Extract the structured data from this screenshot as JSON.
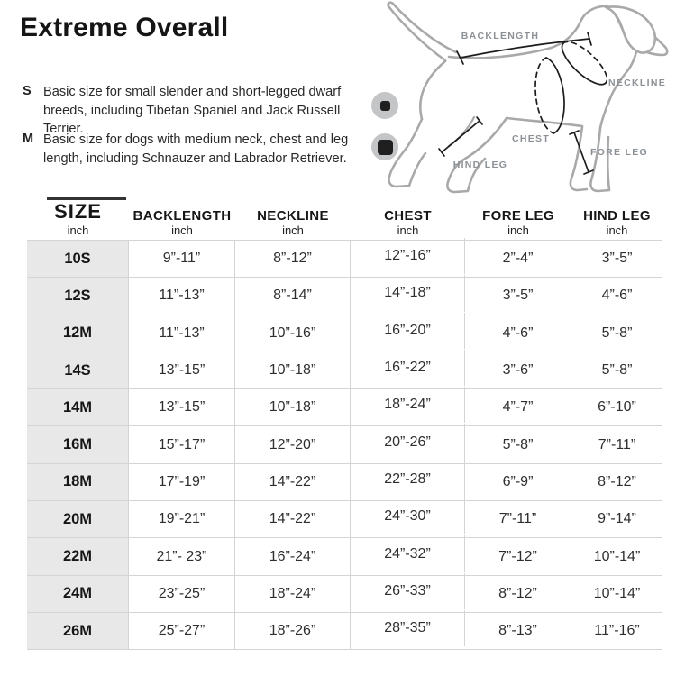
{
  "header": {
    "title": "Extreme Overall"
  },
  "notes": [
    {
      "label": "S",
      "text": "Basic size for small slender and short-legged dwarf breeds, including Tibetan Spaniel and Jack Russell Terrier.",
      "icon": "circle-with-small-square"
    },
    {
      "label": "M",
      "text": "Basic size for dogs with medium neck, chest and leg length, including Schnauzer and Labrador Retriever.",
      "icon": "circle-with-large-square"
    }
  ],
  "diagram": {
    "labels": {
      "backlength": "BACKLENGTH",
      "neckline": "NECKLINE",
      "chest": "CHEST",
      "fore_leg": "FORE LEG",
      "hind_leg": "HIND LEG"
    }
  },
  "table": {
    "columns": [
      {
        "label": "SIZE",
        "unit": "inch"
      },
      {
        "label": "BACKLENGTH",
        "unit": "inch"
      },
      {
        "label": "NECKLINE",
        "unit": "inch"
      },
      {
        "label": "CHEST",
        "unit": "inch"
      },
      {
        "label": "FORE LEG",
        "unit": "inch"
      },
      {
        "label": "HIND LEG",
        "unit": "inch"
      }
    ],
    "rows": [
      {
        "size": "10S",
        "backlength": "9”-11”",
        "neckline": "8”-12”",
        "chest": "12”-16”",
        "fore_leg": "2”-4”",
        "hind_leg": "3”-5”"
      },
      {
        "size": "12S",
        "backlength": "11”-13”",
        "neckline": "8”-14”",
        "chest": "14”-18”",
        "fore_leg": "3”-5”",
        "hind_leg": "4”-6”"
      },
      {
        "size": "12M",
        "backlength": "11”-13”",
        "neckline": "10”-16”",
        "chest": "16”-20”",
        "fore_leg": "4”-6”",
        "hind_leg": "5”-8”"
      },
      {
        "size": "14S",
        "backlength": "13”-15”",
        "neckline": "10”-18”",
        "chest": "16”-22”",
        "fore_leg": "3”-6”",
        "hind_leg": "5”-8”"
      },
      {
        "size": "14M",
        "backlength": "13”-15”",
        "neckline": "10”-18”",
        "chest": "18”-24”",
        "fore_leg": "4”-7”",
        "hind_leg": "6”-10”"
      },
      {
        "size": "16M",
        "backlength": "15”-17”",
        "neckline": "12”-20”",
        "chest": "20”-26”",
        "fore_leg": "5”-8”",
        "hind_leg": "7”-11”"
      },
      {
        "size": "18M",
        "backlength": "17”-19”",
        "neckline": "14”-22”",
        "chest": "22”-28”",
        "fore_leg": "6”-9”",
        "hind_leg": "8”-12”"
      },
      {
        "size": "20M",
        "backlength": "19”-21”",
        "neckline": "14”-22”",
        "chest": "24”-30”",
        "fore_leg": "7”-11”",
        "hind_leg": "9”-14”"
      },
      {
        "size": "22M",
        "backlength": "21”- 23”",
        "neckline": "16”-24”",
        "chest": "24”-32”",
        "fore_leg": "7”-12”",
        "hind_leg": "10”-14”"
      },
      {
        "size": "24M",
        "backlength": "23”-25”",
        "neckline": "18”-24”",
        "chest": "26”-33”",
        "fore_leg": "8”-12”",
        "hind_leg": "10”-14”"
      },
      {
        "size": "26M",
        "backlength": "25”-27”",
        "neckline": "18”-26”",
        "chest": "28”-35”",
        "fore_leg": "8”-13”",
        "hind_leg": "11”-16”"
      }
    ]
  },
  "colors": {
    "diagram_outline": "#a9a9a9",
    "diagram_label_gray": "#8b9196",
    "measure_line": "#1c1c1c",
    "table_border": "#d4d4d4",
    "size_column_bg": "#e8e8e8",
    "icon_circle": "#c4c5c7",
    "icon_square": "#1f1f1f"
  }
}
